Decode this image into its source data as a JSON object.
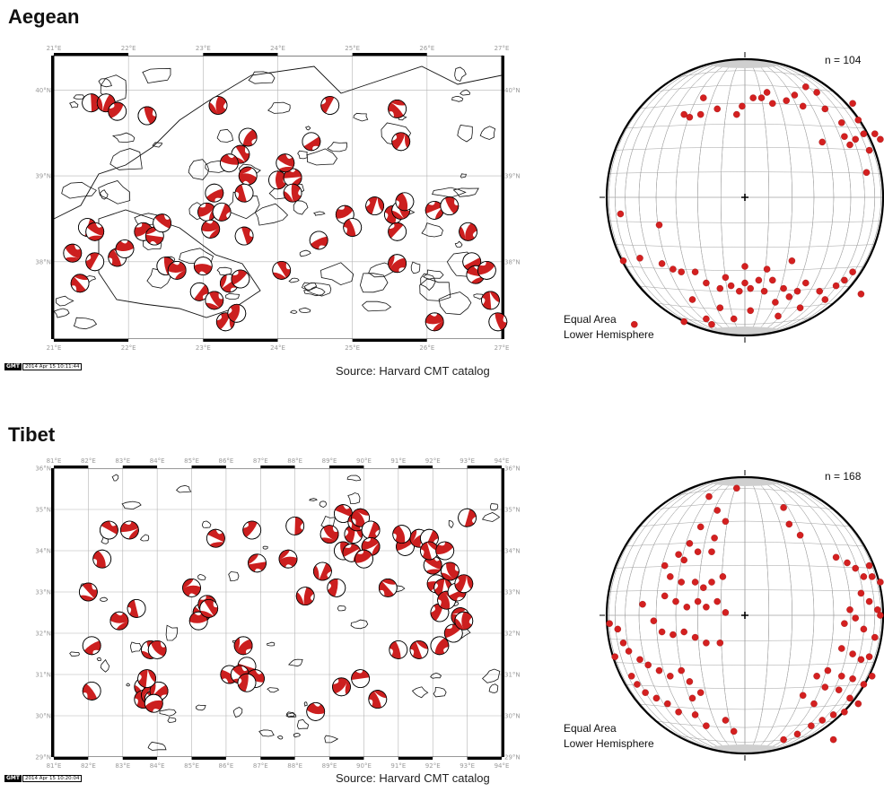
{
  "panels": [
    {
      "title": "Aegean",
      "source": "Source: Harvard CMT catalog",
      "gmt_logo": "GMT",
      "gmt_timestamp": "2014 Apr 15 10:11:44",
      "n_label": "n = 104",
      "projection": [
        "Equal Area",
        "Lower Hemisphere"
      ],
      "lon_ticks": [
        "21°E",
        "22°E",
        "23°E",
        "24°E",
        "25°E",
        "26°E",
        "27°E"
      ],
      "lat_ticks": [
        "40°N",
        "39°N",
        "38°N"
      ],
      "events": [
        [
          21.5,
          39.85
        ],
        [
          21.7,
          39.85
        ],
        [
          21.85,
          39.75
        ],
        [
          22.25,
          39.7
        ],
        [
          22.25,
          39.7
        ],
        [
          23.2,
          39.82
        ],
        [
          24.7,
          39.82
        ],
        [
          25.6,
          39.78
        ],
        [
          23.6,
          39.45
        ],
        [
          23.5,
          39.25
        ],
        [
          23.35,
          39.15
        ],
        [
          23.6,
          39.0
        ],
        [
          24.45,
          39.4
        ],
        [
          25.65,
          39.4
        ],
        [
          24.0,
          38.95
        ],
        [
          24.2,
          38.98
        ],
        [
          23.15,
          38.8
        ],
        [
          23.05,
          38.58
        ],
        [
          23.25,
          38.58
        ],
        [
          24.2,
          38.8
        ],
        [
          24.9,
          38.55
        ],
        [
          25.3,
          38.65
        ],
        [
          25.0,
          38.4
        ],
        [
          25.55,
          38.55
        ],
        [
          25.6,
          38.35
        ],
        [
          25.65,
          38.6
        ],
        [
          25.7,
          38.7
        ],
        [
          26.1,
          38.6
        ],
        [
          26.3,
          38.65
        ],
        [
          26.55,
          38.35
        ],
        [
          26.6,
          38.0
        ],
        [
          26.65,
          37.85
        ],
        [
          26.8,
          37.9
        ],
        [
          26.85,
          37.55
        ],
        [
          26.95,
          37.3
        ],
        [
          26.1,
          37.3
        ],
        [
          21.45,
          38.4
        ],
        [
          21.55,
          38.35
        ],
        [
          22.2,
          38.35
        ],
        [
          22.35,
          38.3
        ],
        [
          22.45,
          38.45
        ],
        [
          21.25,
          38.1
        ],
        [
          21.55,
          38.0
        ],
        [
          21.85,
          38.05
        ],
        [
          21.95,
          38.15
        ],
        [
          21.35,
          37.75
        ],
        [
          22.5,
          37.95
        ],
        [
          22.65,
          37.9
        ],
        [
          22.95,
          37.65
        ],
        [
          23.15,
          37.55
        ],
        [
          23.0,
          37.95
        ],
        [
          23.35,
          37.75
        ],
        [
          23.5,
          37.8
        ],
        [
          23.1,
          38.38
        ],
        [
          23.55,
          38.3
        ],
        [
          23.3,
          37.3
        ],
        [
          23.45,
          37.4
        ],
        [
          24.05,
          37.9
        ],
        [
          24.55,
          38.25
        ],
        [
          25.6,
          37.98
        ],
        [
          23.55,
          38.8
        ],
        [
          24.1,
          39.15
        ]
      ],
      "poles": [
        [
          0.72,
          0.1
        ],
        [
          0.36,
          0.94
        ],
        [
          0.52,
          0.91
        ],
        [
          0.61,
          0.88
        ],
        [
          0.06,
          0.73
        ],
        [
          0.12,
          0.72
        ],
        [
          0.05,
          0.56
        ],
        [
          0.28,
          0.2
        ],
        [
          0.35,
          0.14
        ],
        [
          0.3,
          0.21
        ],
        [
          0.34,
          0.2
        ],
        [
          0.4,
          0.18
        ],
        [
          0.47,
          0.2
        ],
        [
          0.49,
          0.17
        ],
        [
          0.53,
          0.14
        ],
        [
          0.56,
          0.14
        ],
        [
          0.58,
          0.12
        ],
        [
          0.6,
          0.16
        ],
        [
          0.65,
          0.15
        ],
        [
          0.68,
          0.13
        ],
        [
          0.71,
          0.17
        ],
        [
          0.76,
          0.12
        ],
        [
          0.79,
          0.18
        ],
        [
          0.85,
          0.23
        ],
        [
          0.89,
          0.16
        ],
        [
          0.91,
          0.22
        ],
        [
          0.86,
          0.28
        ],
        [
          0.88,
          0.31
        ],
        [
          0.9,
          0.29
        ],
        [
          0.93,
          0.27
        ],
        [
          0.95,
          0.33
        ],
        [
          0.97,
          0.27
        ],
        [
          0.99,
          0.29
        ],
        [
          0.94,
          0.41
        ],
        [
          0.78,
          0.3
        ],
        [
          0.19,
          0.6
        ],
        [
          0.2,
          0.74
        ],
        [
          0.24,
          0.76
        ],
        [
          0.27,
          0.77
        ],
        [
          0.32,
          0.77
        ],
        [
          0.36,
          0.81
        ],
        [
          0.41,
          0.83
        ],
        [
          0.43,
          0.79
        ],
        [
          0.45,
          0.82
        ],
        [
          0.48,
          0.84
        ],
        [
          0.5,
          0.81
        ],
        [
          0.52,
          0.83
        ],
        [
          0.55,
          0.8
        ],
        [
          0.57,
          0.84
        ],
        [
          0.6,
          0.8
        ],
        [
          0.64,
          0.83
        ],
        [
          0.66,
          0.86
        ],
        [
          0.69,
          0.84
        ],
        [
          0.72,
          0.81
        ],
        [
          0.77,
          0.84
        ],
        [
          0.79,
          0.87
        ],
        [
          0.83,
          0.82
        ],
        [
          0.86,
          0.8
        ],
        [
          0.89,
          0.77
        ],
        [
          0.92,
          0.85
        ],
        [
          0.31,
          0.87
        ],
        [
          0.41,
          0.9
        ],
        [
          0.28,
          0.95
        ],
        [
          0.62,
          0.93
        ],
        [
          0.46,
          0.94
        ],
        [
          0.38,
          0.96
        ],
        [
          0.7,
          0.9
        ],
        [
          0.67,
          0.73
        ],
        [
          0.58,
          0.76
        ],
        [
          0.5,
          0.75
        ],
        [
          0.1,
          0.96
        ]
      ]
    },
    {
      "title": "Tibet",
      "source": "Source: Harvard CMT catalog",
      "gmt_logo": "GMT",
      "gmt_timestamp": "2014 Apr 15 10:20:04",
      "n_label": "n = 168",
      "projection": [
        "Equal Area",
        "Lower Hemisphere"
      ],
      "lon_ticks": [
        "81°E",
        "82°E",
        "83°E",
        "84°E",
        "85°E",
        "86°E",
        "87°E",
        "88°E",
        "89°E",
        "90°E",
        "91°E",
        "92°E",
        "93°E",
        "94°E"
      ],
      "lat_ticks": [
        "36°N",
        "35°N",
        "34°N",
        "33°N",
        "32°N",
        "31°N",
        "30°N",
        "29°N"
      ],
      "events": [
        [
          82.6,
          34.5
        ],
        [
          83.2,
          34.5
        ],
        [
          82.4,
          33.8
        ],
        [
          82.0,
          33.0
        ],
        [
          82.1,
          31.7
        ],
        [
          82.9,
          32.3
        ],
        [
          83.4,
          32.6
        ],
        [
          83.8,
          31.6
        ],
        [
          84.0,
          31.6
        ],
        [
          83.6,
          30.7
        ],
        [
          83.6,
          30.4
        ],
        [
          83.8,
          30.5
        ],
        [
          83.9,
          30.4
        ],
        [
          84.05,
          30.6
        ],
        [
          83.9,
          30.3
        ],
        [
          83.7,
          30.9
        ],
        [
          82.1,
          30.6
        ],
        [
          85.0,
          33.1
        ],
        [
          85.3,
          32.5
        ],
        [
          85.45,
          32.7
        ],
        [
          85.2,
          32.3
        ],
        [
          85.7,
          34.3
        ],
        [
          86.1,
          31.0
        ],
        [
          86.5,
          31.7
        ],
        [
          86.6,
          31.2
        ],
        [
          86.4,
          31.0
        ],
        [
          86.85,
          30.9
        ],
        [
          86.9,
          33.7
        ],
        [
          86.75,
          34.5
        ],
        [
          87.8,
          33.8
        ],
        [
          88.0,
          34.6
        ],
        [
          88.3,
          32.9
        ],
        [
          88.6,
          30.1
        ],
        [
          88.8,
          33.5
        ],
        [
          89.2,
          33.1
        ],
        [
          89.0,
          34.4
        ],
        [
          89.4,
          34.9
        ],
        [
          89.7,
          34.4
        ],
        [
          89.4,
          34.0
        ],
        [
          89.65,
          33.95
        ],
        [
          89.8,
          34.7
        ],
        [
          89.9,
          34.8
        ],
        [
          90.2,
          34.5
        ],
        [
          90.2,
          34.1
        ],
        [
          90.0,
          33.8
        ],
        [
          90.7,
          33.1
        ],
        [
          91.2,
          34.1
        ],
        [
          91.6,
          34.3
        ],
        [
          91.9,
          34.3
        ],
        [
          92.0,
          33.65
        ],
        [
          92.1,
          33.2
        ],
        [
          92.3,
          33.1
        ],
        [
          92.2,
          32.5
        ],
        [
          92.4,
          32.8
        ],
        [
          92.7,
          33.0
        ],
        [
          92.8,
          32.4
        ],
        [
          92.2,
          31.7
        ],
        [
          91.6,
          31.6
        ],
        [
          91.0,
          31.6
        ],
        [
          89.35,
          30.7
        ],
        [
          89.9,
          30.9
        ],
        [
          90.4,
          30.4
        ],
        [
          91.1,
          34.4
        ],
        [
          91.9,
          34.0
        ],
        [
          92.6,
          32.0
        ],
        [
          92.9,
          32.3
        ],
        [
          93.0,
          34.8
        ],
        [
          92.9,
          33.2
        ],
        [
          92.35,
          34.0
        ],
        [
          85.5,
          32.6
        ],
        [
          86.6,
          30.8
        ],
        [
          92.5,
          33.5
        ]
      ],
      "poles": [
        [
          0.39,
          0.22
        ],
        [
          0.3,
          0.24
        ],
        [
          0.26,
          0.28
        ],
        [
          0.28,
          0.3
        ],
        [
          0.33,
          0.27
        ],
        [
          0.38,
          0.27
        ],
        [
          0.21,
          0.32
        ],
        [
          0.23,
          0.36
        ],
        [
          0.27,
          0.38
        ],
        [
          0.32,
          0.38
        ],
        [
          0.35,
          0.4
        ],
        [
          0.38,
          0.38
        ],
        [
          0.42,
          0.36
        ],
        [
          0.21,
          0.43
        ],
        [
          0.25,
          0.45
        ],
        [
          0.29,
          0.47
        ],
        [
          0.33,
          0.45
        ],
        [
          0.36,
          0.47
        ],
        [
          0.4,
          0.45
        ],
        [
          0.43,
          0.49
        ],
        [
          0.13,
          0.46
        ],
        [
          0.17,
          0.52
        ],
        [
          0.2,
          0.56
        ],
        [
          0.24,
          0.57
        ],
        [
          0.28,
          0.56
        ],
        [
          0.32,
          0.58
        ],
        [
          0.36,
          0.6
        ],
        [
          0.41,
          0.6
        ],
        [
          0.08,
          0.63
        ],
        [
          0.12,
          0.66
        ],
        [
          0.15,
          0.68
        ],
        [
          0.19,
          0.7
        ],
        [
          0.23,
          0.72
        ],
        [
          0.27,
          0.7
        ],
        [
          0.3,
          0.74
        ],
        [
          0.34,
          0.78
        ],
        [
          0.09,
          0.72
        ],
        [
          0.11,
          0.75
        ],
        [
          0.14,
          0.78
        ],
        [
          0.18,
          0.8
        ],
        [
          0.22,
          0.82
        ],
        [
          0.26,
          0.85
        ],
        [
          0.32,
          0.86
        ],
        [
          0.36,
          0.9
        ],
        [
          0.31,
          0.8
        ],
        [
          0.43,
          0.88
        ],
        [
          0.46,
          0.92
        ],
        [
          0.01,
          0.53
        ],
        [
          0.04,
          0.55
        ],
        [
          0.06,
          0.6
        ],
        [
          0.03,
          0.65
        ],
        [
          0.47,
          0.04
        ],
        [
          0.37,
          0.07
        ],
        [
          0.4,
          0.12
        ],
        [
          0.43,
          0.16
        ],
        [
          0.34,
          0.18
        ],
        [
          0.64,
          0.11
        ],
        [
          0.66,
          0.17
        ],
        [
          0.7,
          0.21
        ],
        [
          0.83,
          0.29
        ],
        [
          0.87,
          0.31
        ],
        [
          0.9,
          0.33
        ],
        [
          0.93,
          0.36
        ],
        [
          0.96,
          0.36
        ],
        [
          0.99,
          0.38
        ],
        [
          0.92,
          0.42
        ],
        [
          0.95,
          0.45
        ],
        [
          0.98,
          0.48
        ],
        [
          0.88,
          0.48
        ],
        [
          0.86,
          0.53
        ],
        [
          0.9,
          0.51
        ],
        [
          0.93,
          0.55
        ],
        [
          0.97,
          0.58
        ],
        [
          0.85,
          0.62
        ],
        [
          0.89,
          0.64
        ],
        [
          0.92,
          0.66
        ],
        [
          0.95,
          0.65
        ],
        [
          0.85,
          0.72
        ],
        [
          0.89,
          0.73
        ],
        [
          0.93,
          0.75
        ],
        [
          0.96,
          0.72
        ],
        [
          0.88,
          0.8
        ],
        [
          0.91,
          0.82
        ],
        [
          0.86,
          0.85
        ],
        [
          0.82,
          0.86
        ],
        [
          0.78,
          0.88
        ],
        [
          0.74,
          0.9
        ],
        [
          0.69,
          0.93
        ],
        [
          0.64,
          0.95
        ],
        [
          0.71,
          0.79
        ],
        [
          0.75,
          0.82
        ],
        [
          0.79,
          0.76
        ],
        [
          0.84,
          0.77
        ],
        [
          0.8,
          0.7
        ],
        [
          0.76,
          0.72
        ],
        [
          0.95,
          0.32
        ],
        [
          0.99,
          0.5
        ],
        [
          0.82,
          0.95
        ]
      ]
    }
  ],
  "colors": {
    "beachball_fill": "#cc1f1f",
    "pole_fill": "#d42020",
    "grid": "#b4b4b4",
    "net": "#a0a0a0",
    "coast": "#111111"
  }
}
